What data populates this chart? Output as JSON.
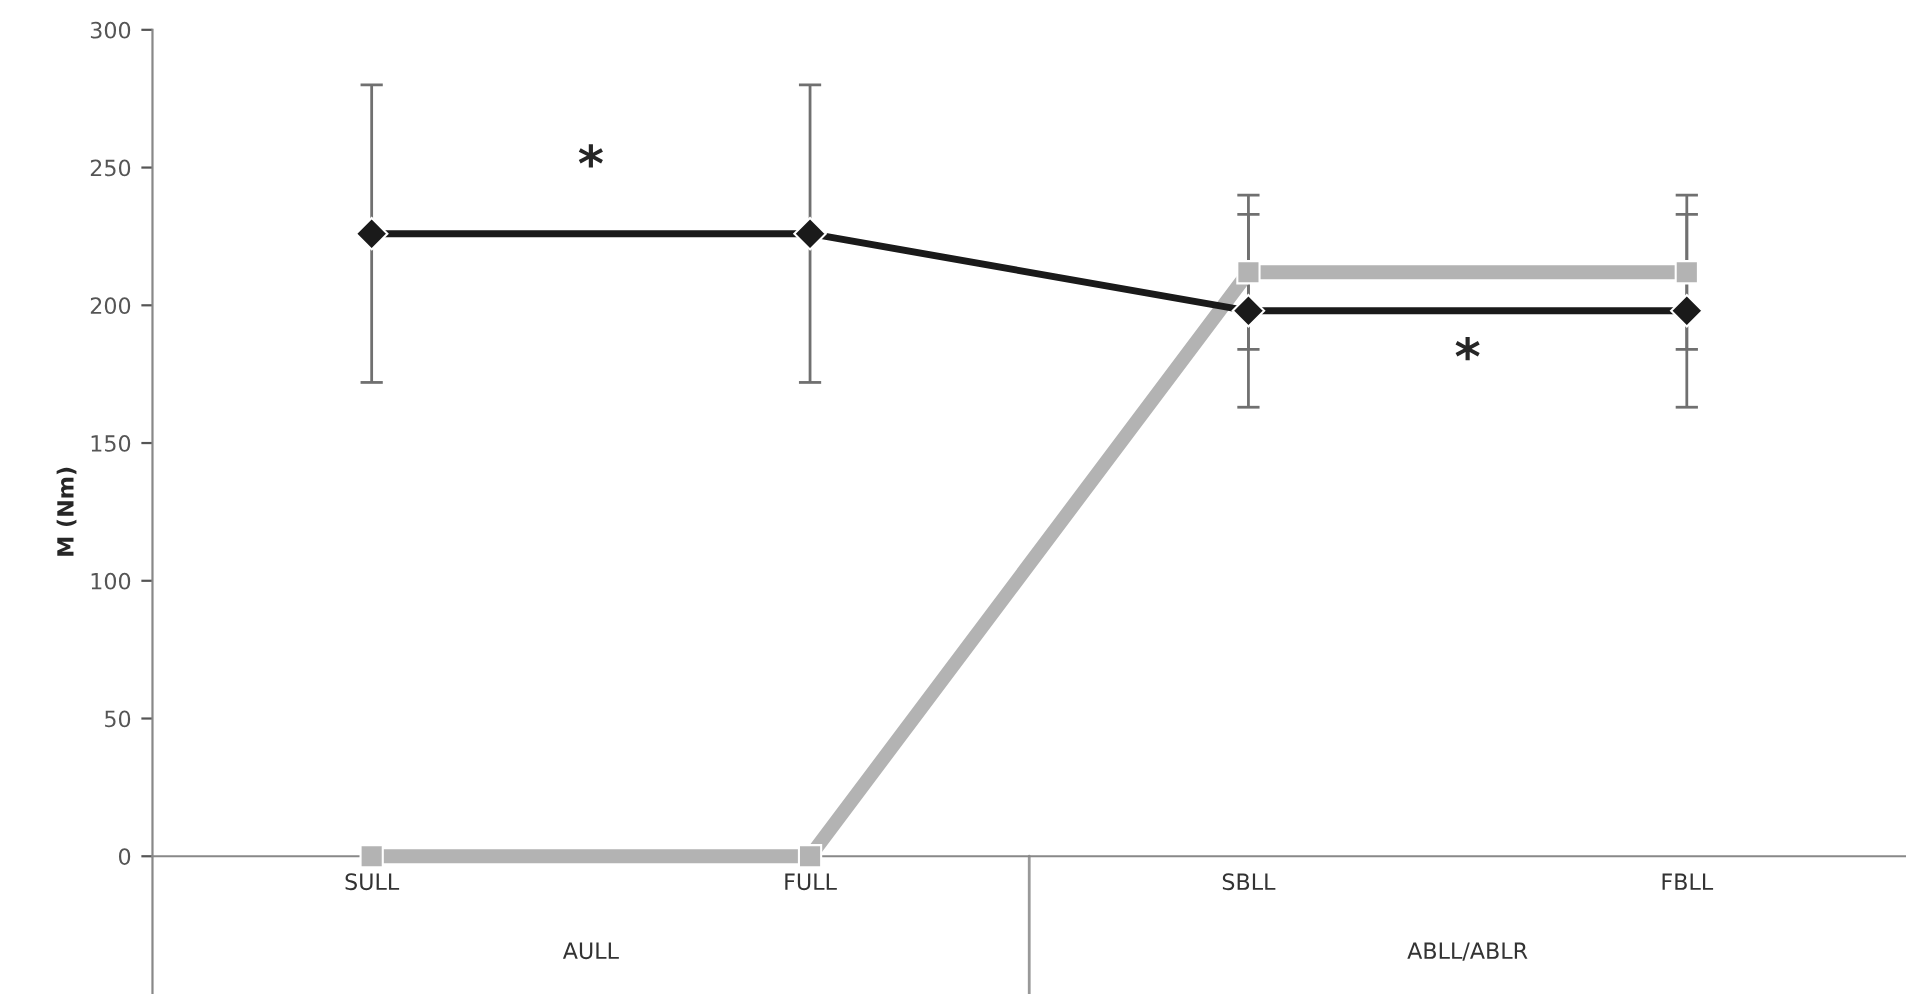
{
  "chart_data": {
    "type": "line",
    "ylabel": "M (Nm)",
    "categories": [
      "SULL",
      "FULL",
      "SBLL",
      "FBLL"
    ],
    "series": [
      {
        "color": "#b3b3b3",
        "values": [
          0,
          0,
          212,
          212
        ],
        "errors": [
          null,
          null,
          28,
          28
        ],
        "marker": "square"
      },
      {
        "color": "#1a1a1a",
        "values": [
          226,
          226,
          198,
          198
        ],
        "errors": [
          54,
          54,
          35,
          35
        ],
        "marker": "diamond"
      }
    ],
    "ylim": [
      -50,
      300
    ],
    "yticks": [
      0,
      50,
      100,
      150,
      200,
      250,
      300
    ],
    "annotations": [
      "*",
      "*",
      "AULL",
      "ABLL/ABLR"
    ],
    "grid": false,
    "legend": false
  }
}
